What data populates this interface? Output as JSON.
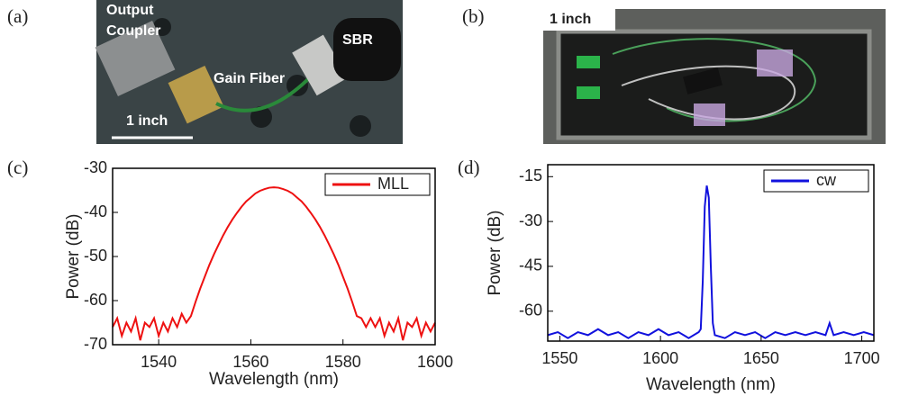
{
  "panels": [
    "(a)",
    "(b)",
    "(c)",
    "(d)"
  ],
  "photo_a": {
    "labels": [
      "Output",
      "Coupler",
      "Gain Fiber",
      "SBR"
    ],
    "scale": "1 inch"
  },
  "photo_b": {
    "scale": "1 inch"
  },
  "chart_data": [
    {
      "type": "line",
      "xlabel": "Wavelength (nm)",
      "ylabel": "Power (dB)",
      "xlim": [
        1530,
        1600
      ],
      "xticks": [
        1540,
        1560,
        1580,
        1600
      ],
      "ylim": [
        -70,
        -30
      ],
      "yticks": [
        -70,
        -60,
        -50,
        -40,
        -30
      ],
      "legend": "upper right",
      "x": [
        1530,
        1531,
        1532,
        1533,
        1534,
        1535,
        1536,
        1537,
        1538,
        1539,
        1540,
        1541,
        1542,
        1543,
        1544,
        1545,
        1546,
        1547,
        1548,
        1549,
        1550,
        1551,
        1552,
        1553,
        1554,
        1555,
        1556,
        1557,
        1558,
        1559,
        1560,
        1561,
        1562,
        1563,
        1564,
        1565,
        1566,
        1567,
        1568,
        1569,
        1570,
        1571,
        1572,
        1573,
        1574,
        1575,
        1576,
        1577,
        1578,
        1579,
        1580,
        1581,
        1582,
        1583,
        1584,
        1585,
        1586,
        1587,
        1588,
        1589,
        1590,
        1591,
        1592,
        1593,
        1594,
        1595,
        1596,
        1597,
        1598,
        1599,
        1600
      ],
      "series": [
        {
          "name": "MLL",
          "color": "#ee1111",
          "values": [
            -66,
            -64,
            -68,
            -65,
            -67,
            -64,
            -69,
            -65,
            -66,
            -64,
            -68,
            -65,
            -67,
            -64,
            -66,
            -63,
            -65,
            -63.5,
            -60.3,
            -57.3,
            -54.6,
            -51.9,
            -49.5,
            -47.3,
            -45.2,
            -43.3,
            -41.6,
            -40.1,
            -38.7,
            -37.5,
            -36.6,
            -35.7,
            -35.1,
            -34.7,
            -34.4,
            -34.3,
            -34.4,
            -34.7,
            -35.1,
            -35.7,
            -36.6,
            -37.5,
            -38.7,
            -40.1,
            -41.6,
            -43.3,
            -45.2,
            -47.3,
            -49.5,
            -51.9,
            -54.6,
            -57.3,
            -60.3,
            -63.5,
            -64,
            -66,
            -64,
            -66,
            -64,
            -68,
            -65,
            -67,
            -64,
            -69,
            -65,
            -66,
            -64,
            -68,
            -65,
            -67,
            -65
          ]
        }
      ]
    },
    {
      "type": "line",
      "xlabel": "Wavelength (nm)",
      "ylabel": "Power (dB)",
      "xlim": [
        1544,
        1706
      ],
      "xticks": [
        1550,
        1600,
        1650,
        1700
      ],
      "ylim": [
        -70,
        -11
      ],
      "yticks": [
        -15,
        -30,
        -45,
        -60
      ],
      "legend": "upper right",
      "x": [
        1544,
        1549,
        1554,
        1559,
        1564,
        1569,
        1574,
        1579,
        1584,
        1589,
        1594,
        1599,
        1604,
        1609,
        1614,
        1619,
        1620,
        1621,
        1622,
        1623,
        1624,
        1625,
        1626,
        1627,
        1632,
        1637,
        1642,
        1647,
        1652,
        1657,
        1662,
        1667,
        1672,
        1677,
        1682,
        1684,
        1686,
        1691,
        1696,
        1701,
        1706
      ],
      "series": [
        {
          "name": "cw",
          "color": "#1111dd",
          "values": [
            -68,
            -67,
            -69,
            -67,
            -68,
            -66,
            -68,
            -67,
            -69,
            -67,
            -68,
            -66,
            -68,
            -67,
            -69,
            -67,
            -66,
            -50,
            -25,
            -18,
            -22,
            -45,
            -64,
            -68,
            -69,
            -67,
            -68,
            -67,
            -69,
            -67,
            -68,
            -67,
            -68,
            -67,
            -68,
            -64,
            -68,
            -67,
            -68,
            -67,
            -68
          ]
        }
      ]
    }
  ]
}
